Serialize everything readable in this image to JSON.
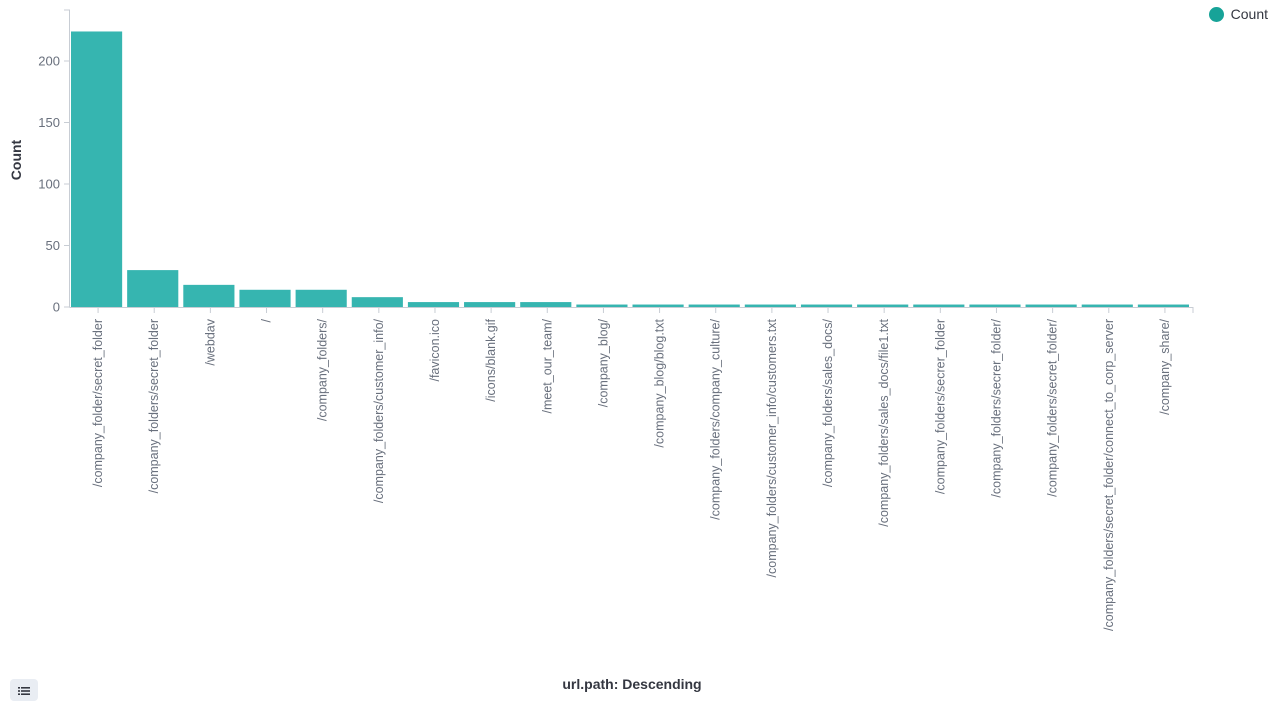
{
  "chart_data": {
    "type": "bar",
    "xlabel": "url.path: Descending",
    "ylabel": "Count",
    "ylim": [
      0,
      230
    ],
    "yticks": [
      0,
      50,
      100,
      150,
      200
    ],
    "categories": [
      "/company_folder/secret_folder",
      "/company_folders/secret_folder",
      "/webdav",
      "/",
      "/company_folders/",
      "/company_folders/customer_info/",
      "/favicon.ico",
      "/icons/blank.gif",
      "/meet_our_team/",
      "/company_blog/",
      "/company_blog/blog.txt",
      "/company_folders/company_culture/",
      "/company_folders/customer_info/customers.txt",
      "/company_folders/sales_docs/",
      "/company_folders/sales_docs/file1.txt",
      "/company_folders/secrer_folder",
      "/company_folders/secrer_folder/",
      "/company_folders/secret_folder/",
      "/company_folders/secret_folder/connect_to_corp_server",
      "/company_share/"
    ],
    "series": [
      {
        "name": "Count",
        "values": [
          224,
          30,
          18,
          14,
          14,
          8,
          4,
          4,
          4,
          2,
          2,
          2,
          2,
          2,
          2,
          2,
          2,
          2,
          2,
          2
        ]
      }
    ],
    "grid": false,
    "legend_position": "top-right"
  },
  "colors": {
    "bar": "#36b5b0",
    "legend_dot": "#17a398",
    "axis": "#c8cdd4"
  },
  "legend": {
    "label": "Count"
  },
  "legend_toggle_icon": "list-icon"
}
